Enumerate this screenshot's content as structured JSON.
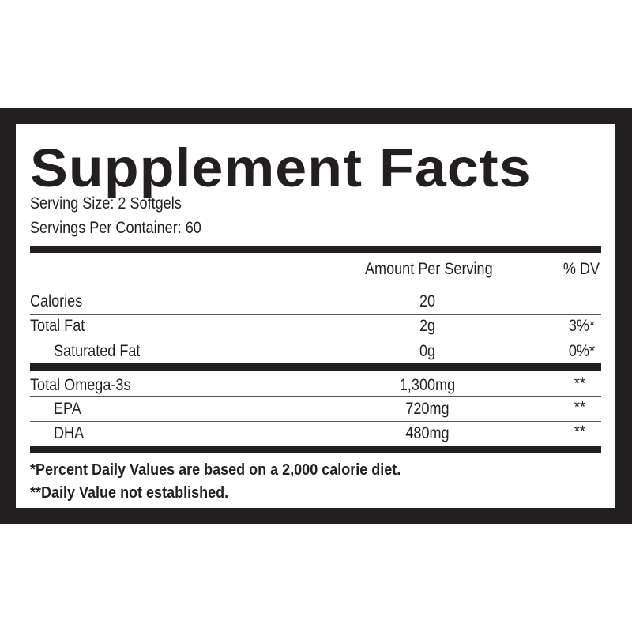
{
  "title": "Supplement Facts",
  "serving_size": "Serving Size: 2 Softgels",
  "servings_per_container": "Servings Per Container: 60",
  "headers": {
    "amount": "Amount Per Serving",
    "dv": "% DV"
  },
  "rows": [
    {
      "name": "Calories",
      "amount": "20",
      "dv": ""
    },
    {
      "name": "Total Fat",
      "amount": "2g",
      "dv": "3%*"
    },
    {
      "name": "Saturated Fat",
      "amount": "0g",
      "dv": "0%*"
    },
    {
      "name": "Total Omega-3s",
      "amount": "1,300mg",
      "dv": "**"
    },
    {
      "name": "EPA",
      "amount": "720mg",
      "dv": "**"
    },
    {
      "name": "DHA",
      "amount": "480mg",
      "dv": "**"
    }
  ],
  "footnotes": [
    "*Percent Daily Values are based on a 2,000 calorie diet.",
    "**Daily Value not established."
  ]
}
